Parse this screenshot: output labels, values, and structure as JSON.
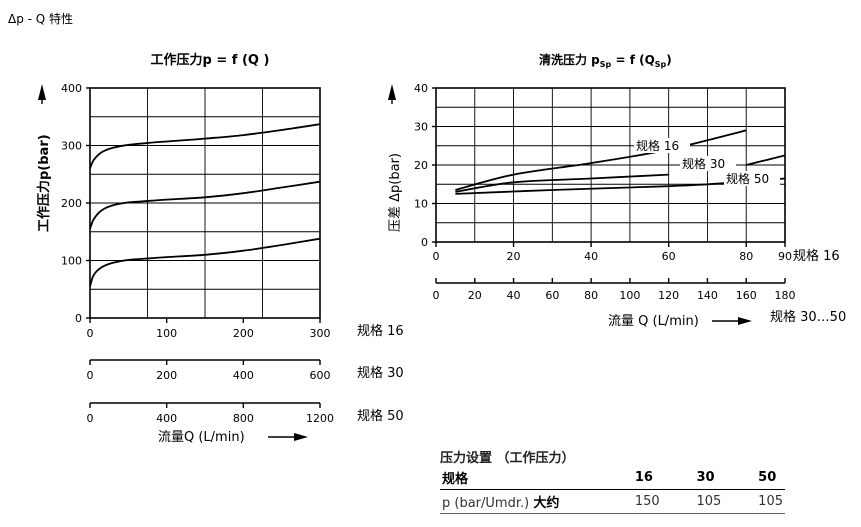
{
  "heading": "Δp - Q 特性",
  "chart_data": [
    {
      "type": "line",
      "title": "工作压力p = f (Q )",
      "ylabel": "工作压力p(bar)",
      "xlabel": "流量Q (L/min)",
      "ylim": [
        0,
        400
      ],
      "yticks": [
        "0",
        "100",
        "200",
        "300",
        "400"
      ],
      "x_axes": [
        {
          "label": "规格 16",
          "ticks": [
            "0",
            "100",
            "200",
            "300"
          ],
          "range": [
            0,
            300
          ]
        },
        {
          "label": "规格 30",
          "ticks": [
            "0",
            "200",
            "400",
            "600"
          ],
          "range": [
            0,
            600
          ]
        },
        {
          "label": "规格 50",
          "ticks": [
            "0",
            "400",
            "800",
            "1200"
          ],
          "range": [
            0,
            1200
          ]
        }
      ],
      "series": [
        {
          "x": [
            0,
            5,
            15,
            30,
            50,
            80,
            100,
            150,
            200,
            250,
            300
          ],
          "values": [
            260,
            275,
            288,
            296,
            301,
            305,
            307,
            312,
            318,
            327,
            337
          ]
        },
        {
          "x": [
            0,
            5,
            15,
            30,
            50,
            80,
            100,
            150,
            200,
            250,
            300
          ],
          "values": [
            155,
            172,
            187,
            196,
            201,
            204,
            206,
            210,
            217,
            227,
            237
          ]
        },
        {
          "x": [
            0,
            5,
            15,
            30,
            50,
            80,
            100,
            150,
            200,
            250,
            300
          ],
          "values": [
            55,
            75,
            88,
            96,
            101,
            104,
            106,
            110,
            117,
            127,
            138
          ]
        }
      ]
    },
    {
      "type": "line",
      "title": "清洗压力 p",
      "title_sub": "Sp",
      "title_rest": " = f (Q",
      "title_sub2": "Sp",
      "title_end": ")",
      "ylabel": "压差 Δp(bar)",
      "xlabel": "流量 Q (L/min)",
      "ylim": [
        0,
        40
      ],
      "yticks": [
        "0",
        "10",
        "20",
        "30",
        "40"
      ],
      "x_axes": [
        {
          "label": "规格 16",
          "ticks": [
            "0",
            "20",
            "40",
            "60",
            "80",
            "90"
          ],
          "range": [
            0,
            90
          ]
        },
        {
          "label": "规格 30…50",
          "ticks": [
            "0",
            "20",
            "40",
            "60",
            "80",
            "100",
            "120",
            "140",
            "160",
            "180"
          ],
          "range": [
            0,
            180
          ]
        }
      ],
      "series": [
        {
          "name": "规格 16",
          "x": [
            5,
            20,
            40,
            60,
            80
          ],
          "values": [
            13.5,
            17.5,
            20.5,
            24,
            29
          ]
        },
        {
          "name": "规格 30",
          "x": [
            5,
            20,
            40,
            60
          ],
          "values": [
            13,
            15.5,
            16.5,
            17.5
          ]
        },
        {
          "name": "规格 50",
          "x": [
            5,
            30,
            60,
            70,
            80,
            90
          ],
          "values": [
            12.5,
            13.5,
            14.5,
            15,
            15.7,
            16.5
          ]
        },
        {
          "x": [
            80,
            90
          ],
          "values": [
            20,
            22.5
          ]
        }
      ]
    }
  ],
  "pressure_table": {
    "title": "压力设置 （工作压力）",
    "headers": [
      "规格",
      "16",
      "30",
      "50"
    ],
    "row_label": "p (bar/Umdr.) ",
    "row_label_strong": "大约",
    "row_values": [
      "150",
      "105",
      "105"
    ]
  }
}
